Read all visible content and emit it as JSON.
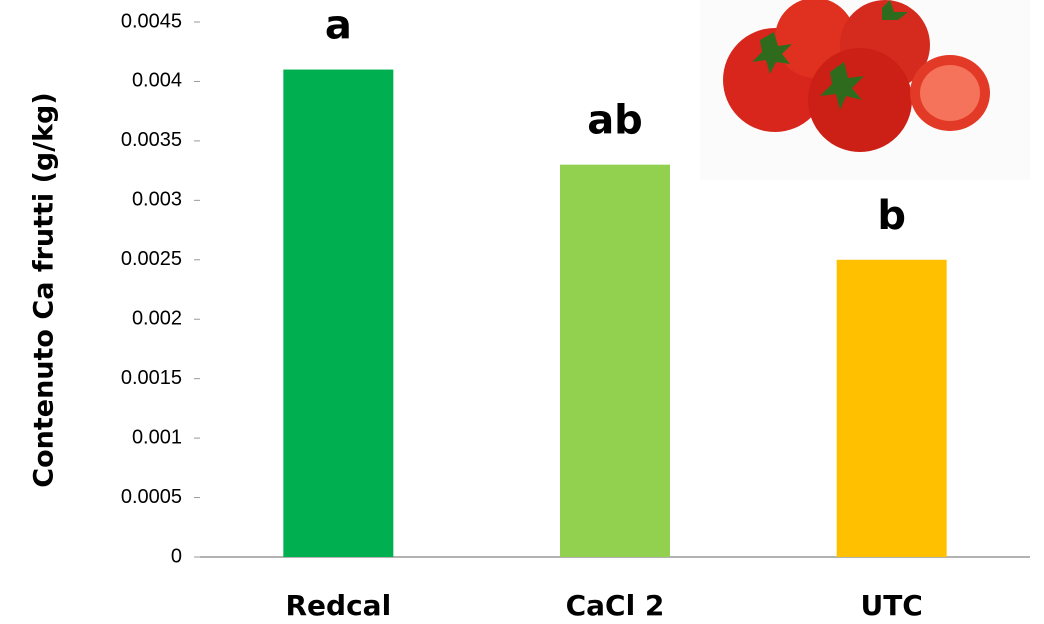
{
  "chart_data": {
    "type": "bar",
    "y_label": "Contenuto Ca frutti (g/kg)",
    "categories": [
      "Redcal",
      "CaCl 2",
      "UTC"
    ],
    "values": [
      0.0041,
      0.0033,
      0.0025
    ],
    "colors": [
      "#00b050",
      "#92d050",
      "#ffc000"
    ],
    "annotations": [
      "a",
      "ab",
      "b"
    ],
    "ylim": [
      0,
      0.0045
    ],
    "yticks": [
      0,
      0.0005,
      0.001,
      0.0015,
      0.002,
      0.0025,
      0.003,
      0.0035,
      0.004,
      0.0045
    ],
    "grid": false
  }
}
